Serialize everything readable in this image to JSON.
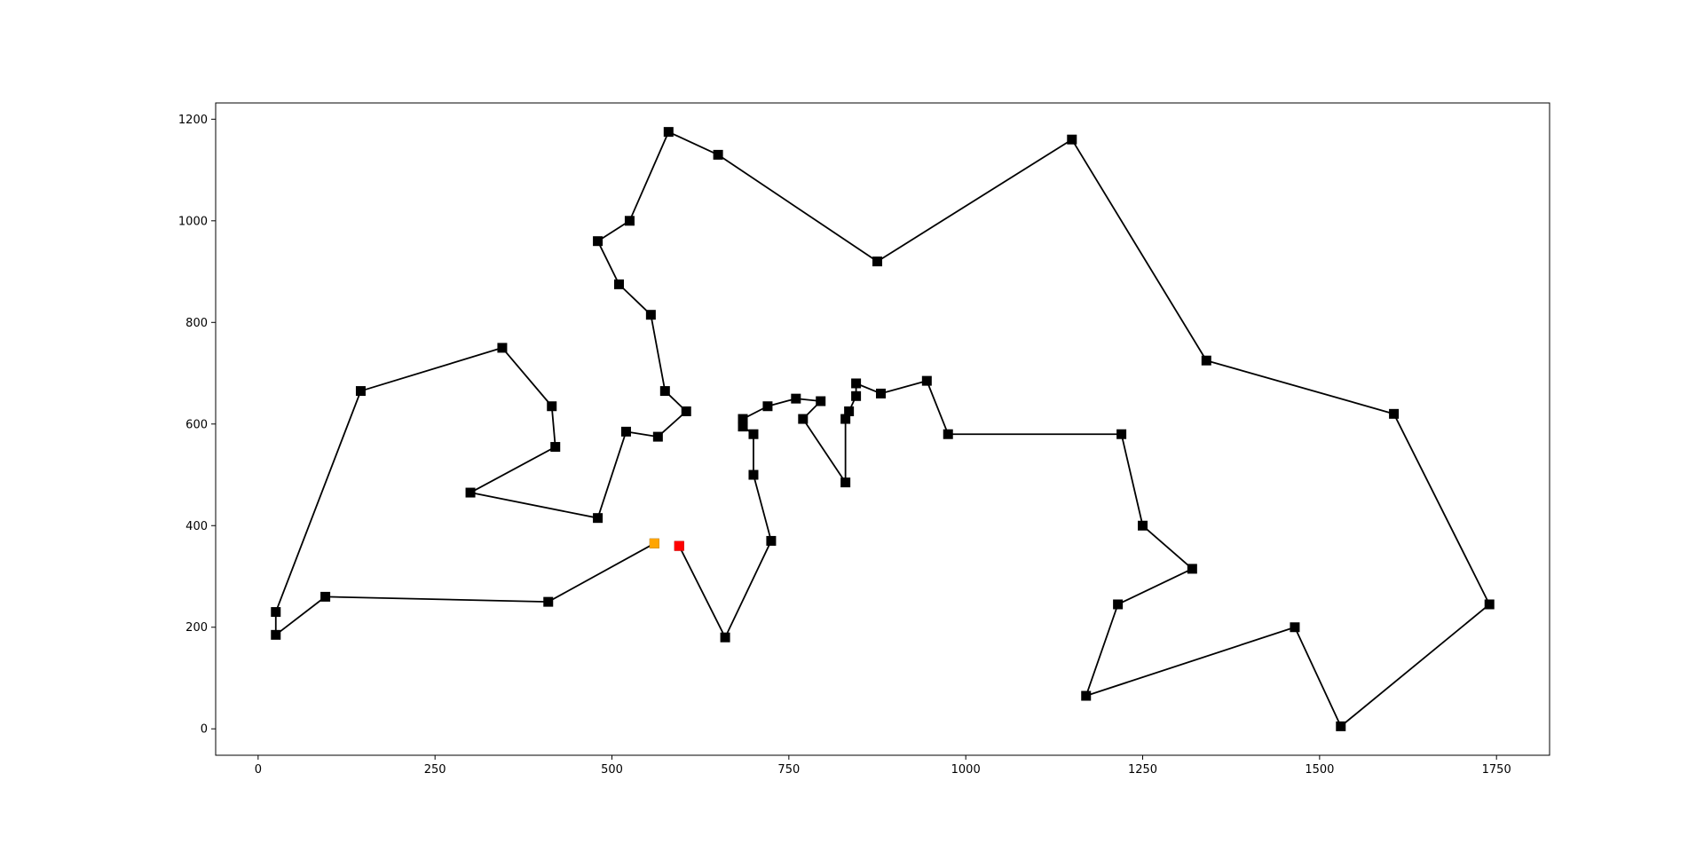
{
  "chart_data": {
    "type": "line",
    "title": "",
    "xlabel": "",
    "ylabel": "",
    "xlim": [
      -60,
      1825
    ],
    "ylim": [
      -52,
      1232
    ],
    "xticks": [
      "0",
      "250",
      "500",
      "750",
      "1000",
      "1250",
      "1500",
      "1750"
    ],
    "yticks": [
      "0",
      "200",
      "400",
      "600",
      "800",
      "1000",
      "1200"
    ],
    "grid": false,
    "legend": "none",
    "series": [
      {
        "line_color": "#000000",
        "marker": "square",
        "marker_color": "#000000",
        "points": [
          [
            595,
            360
          ],
          [
            660,
            180
          ],
          [
            725,
            370
          ],
          [
            700,
            500
          ],
          [
            700,
            580
          ],
          [
            685,
            595
          ],
          [
            685,
            610
          ],
          [
            720,
            635
          ],
          [
            760,
            650
          ],
          [
            795,
            645
          ],
          [
            770,
            610
          ],
          [
            830,
            485
          ],
          [
            830,
            610
          ],
          [
            835,
            625
          ],
          [
            845,
            655
          ],
          [
            845,
            680
          ],
          [
            880,
            660
          ],
          [
            945,
            685
          ],
          [
            975,
            580
          ],
          [
            1220,
            580
          ],
          [
            1250,
            400
          ],
          [
            1320,
            315
          ],
          [
            1215,
            245
          ],
          [
            1170,
            65
          ],
          [
            1465,
            200
          ],
          [
            1530,
            5
          ],
          [
            1740,
            245
          ],
          [
            1605,
            620
          ],
          [
            1340,
            725
          ],
          [
            1150,
            1160
          ],
          [
            875,
            920
          ],
          [
            650,
            1130
          ],
          [
            580,
            1175
          ],
          [
            525,
            1000
          ],
          [
            480,
            960
          ],
          [
            510,
            875
          ],
          [
            555,
            815
          ],
          [
            575,
            665
          ],
          [
            605,
            625
          ],
          [
            565,
            575
          ],
          [
            520,
            585
          ],
          [
            480,
            415
          ],
          [
            300,
            465
          ],
          [
            420,
            555
          ],
          [
            415,
            635
          ],
          [
            345,
            750
          ],
          [
            145,
            665
          ],
          [
            25,
            230
          ],
          [
            25,
            185
          ],
          [
            95,
            260
          ],
          [
            410,
            250
          ],
          [
            560,
            365
          ]
        ]
      }
    ],
    "highlights": [
      {
        "x": 560,
        "y": 365,
        "color": "#ffa500"
      },
      {
        "x": 595,
        "y": 360,
        "color": "#ff0000"
      }
    ]
  }
}
